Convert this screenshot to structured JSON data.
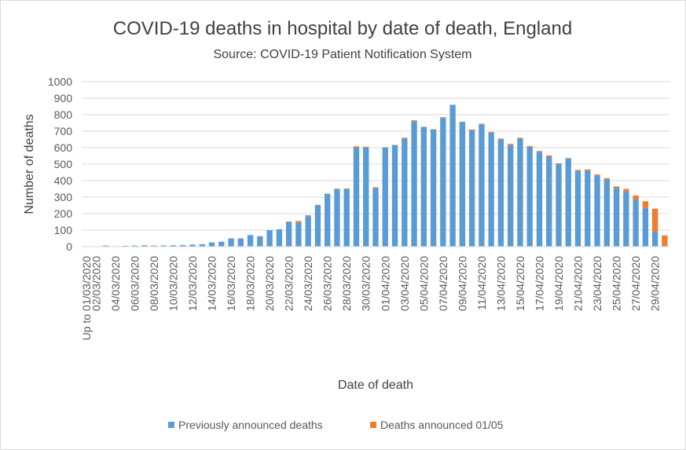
{
  "chart_data": {
    "type": "bar",
    "stacked": true,
    "title": "COVID-19 deaths in hospital by date of death, England",
    "subtitle": "Source: COVID-19 Patient Notification System",
    "xlabel": "Date of death",
    "ylabel": "Number of deaths",
    "ylim": [
      0,
      1000
    ],
    "yticks": [
      0,
      100,
      200,
      300,
      400,
      500,
      600,
      700,
      800,
      900,
      1000
    ],
    "grid": true,
    "legend_position": "bottom",
    "categories": [
      "Up to 01/03/2020",
      "02/03/2020",
      "03/03/2020",
      "04/03/2020",
      "05/03/2020",
      "06/03/2020",
      "07/03/2020",
      "08/03/2020",
      "09/03/2020",
      "10/03/2020",
      "11/03/2020",
      "12/03/2020",
      "13/03/2020",
      "14/03/2020",
      "15/03/2020",
      "16/03/2020",
      "17/03/2020",
      "18/03/2020",
      "19/03/2020",
      "20/03/2020",
      "21/03/2020",
      "22/03/2020",
      "23/03/2020",
      "24/03/2020",
      "25/03/2020",
      "26/03/2020",
      "27/03/2020",
      "28/03/2020",
      "29/03/2020",
      "30/03/2020",
      "31/03/2020",
      "01/04/2020",
      "02/04/2020",
      "03/04/2020",
      "04/04/2020",
      "05/04/2020",
      "06/04/2020",
      "07/04/2020",
      "08/04/2020",
      "09/04/2020",
      "10/04/2020",
      "11/04/2020",
      "12/04/2020",
      "13/04/2020",
      "14/04/2020",
      "15/04/2020",
      "16/04/2020",
      "17/04/2020",
      "18/04/2020",
      "19/04/2020",
      "20/04/2020",
      "21/04/2020",
      "22/04/2020",
      "23/04/2020",
      "24/04/2020",
      "25/04/2020",
      "26/04/2020",
      "27/04/2020",
      "28/04/2020",
      "29/04/2020",
      "30/04/2020"
    ],
    "tick_labels": [
      "Up to 01/03/2020",
      "02/03/2020",
      "04/03/2020",
      "06/03/2020",
      "08/03/2020",
      "10/03/2020",
      "12/03/2020",
      "14/03/2020",
      "16/03/2020",
      "18/03/2020",
      "20/03/2020",
      "22/03/2020",
      "24/03/2020",
      "26/03/2020",
      "28/03/2020",
      "30/03/2020",
      "01/04/2020",
      "03/04/2020",
      "05/04/2020",
      "07/04/2020",
      "09/04/2020",
      "11/04/2020",
      "13/04/2020",
      "15/04/2020",
      "17/04/2020",
      "19/04/2020",
      "21/04/2020",
      "23/04/2020",
      "25/04/2020",
      "27/04/2020",
      "29/04/2020"
    ],
    "series": [
      {
        "name": "Previously announced deaths",
        "color": "#5b9bd5",
        "values": [
          0,
          2,
          6,
          3,
          5,
          6,
          8,
          6,
          7,
          8,
          9,
          12,
          14,
          25,
          30,
          50,
          50,
          70,
          63,
          100,
          105,
          150,
          145,
          185,
          250,
          320,
          350,
          350,
          600,
          600,
          355,
          600,
          615,
          655,
          760,
          725,
          710,
          780,
          860,
          755,
          705,
          740,
          690,
          650,
          615,
          655,
          605,
          575,
          545,
          500,
          535,
          460,
          460,
          430,
          405,
          355,
          335,
          285,
          235,
          90,
          0
        ]
      },
      {
        "name": "Deaths announced 01/05",
        "color": "#ed7d31",
        "values": [
          0,
          0,
          0,
          0,
          0,
          0,
          0,
          0,
          0,
          0,
          0,
          0,
          0,
          0,
          0,
          0,
          0,
          0,
          0,
          0,
          0,
          2,
          10,
          5,
          3,
          1,
          1,
          2,
          8,
          5,
          5,
          2,
          2,
          5,
          6,
          2,
          2,
          5,
          0,
          2,
          5,
          5,
          5,
          5,
          8,
          5,
          5,
          5,
          8,
          5,
          2,
          5,
          8,
          8,
          10,
          10,
          15,
          25,
          40,
          140,
          68
        ]
      }
    ]
  }
}
